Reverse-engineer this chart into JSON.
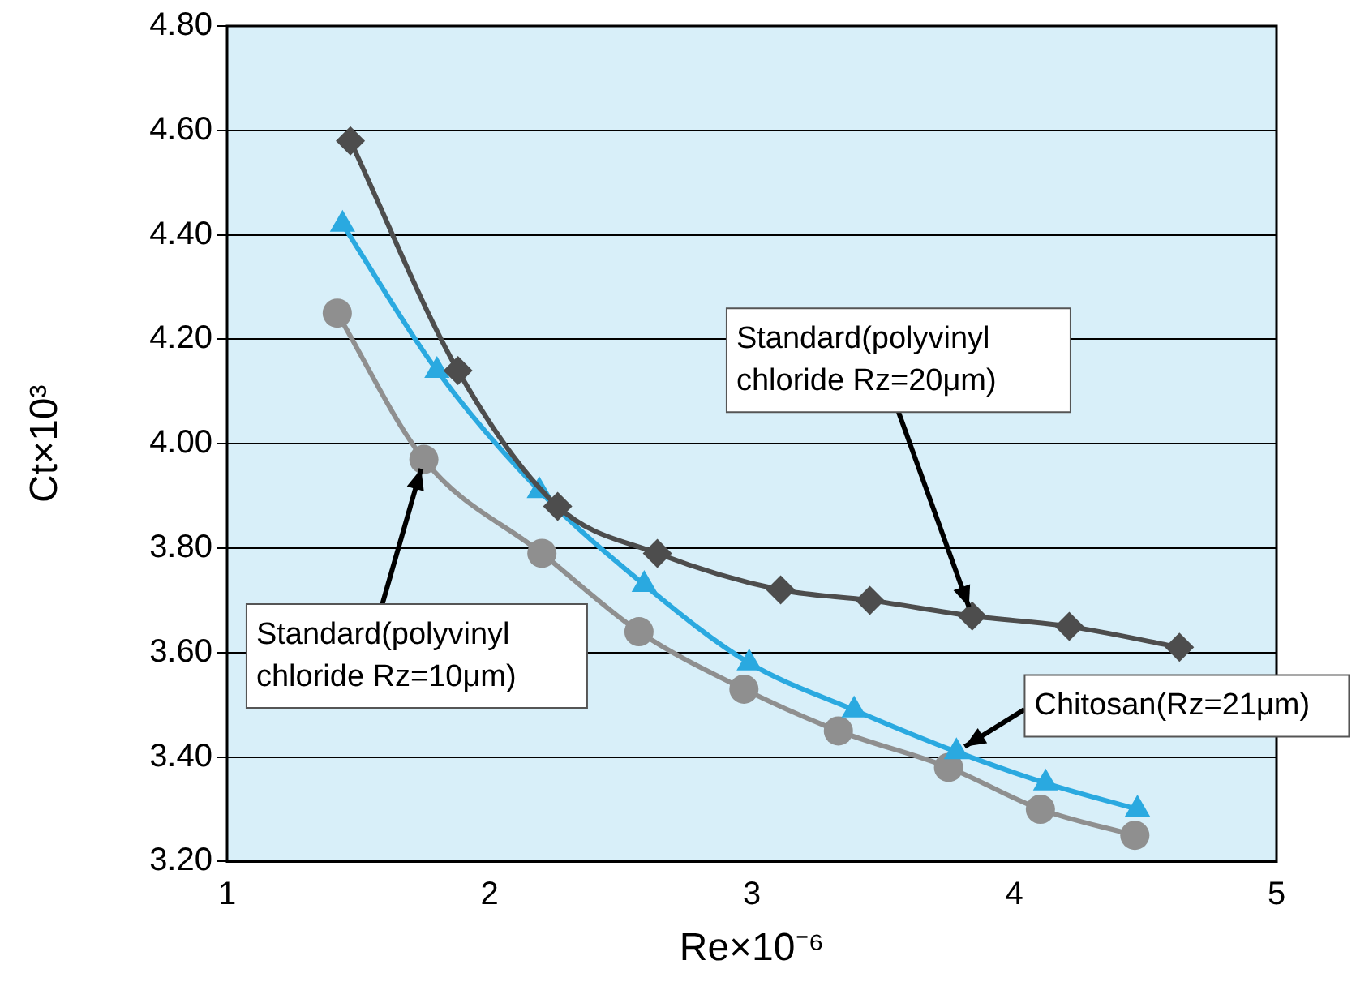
{
  "chart_data": {
    "type": "line",
    "xlabel": "Re×10⁻⁶",
    "ylabel": "Ct×10³",
    "xlim": [
      1,
      5
    ],
    "xticks": [
      1,
      2,
      3,
      4,
      5
    ],
    "ylim": [
      3.2,
      4.8
    ],
    "yticks": [
      {
        "value": 3.2,
        "label": "3.20"
      },
      {
        "value": 3.4,
        "label": "3.40"
      },
      {
        "value": 3.6,
        "label": "3.60"
      },
      {
        "value": 3.8,
        "label": "3.80"
      },
      {
        "value": 4.0,
        "label": "4.00"
      },
      {
        "value": 4.2,
        "label": "4.20"
      },
      {
        "value": 4.4,
        "label": "4.40"
      },
      {
        "value": 4.6,
        "label": "4.60"
      },
      {
        "value": 4.8,
        "label": "4.80"
      }
    ],
    "grid": "y",
    "legend": false,
    "series": [
      {
        "color": "#4d4d4d",
        "marker": "diamond",
        "x": [
          1.47,
          1.88,
          2.26,
          2.64,
          3.11,
          3.45,
          3.84,
          4.21,
          4.63
        ],
        "values": [
          4.58,
          4.14,
          3.88,
          3.79,
          3.72,
          3.7,
          3.67,
          3.65,
          3.61
        ]
      },
      {
        "color": "#2aa9e0",
        "marker": "triangle",
        "x": [
          1.44,
          1.8,
          2.19,
          2.59,
          2.99,
          3.39,
          3.78,
          4.12,
          4.47
        ],
        "values": [
          4.42,
          4.14,
          3.91,
          3.73,
          3.58,
          3.49,
          3.41,
          3.35,
          3.3
        ]
      },
      {
        "color": "#8f8f8f",
        "marker": "circle",
        "x": [
          1.42,
          1.75,
          2.2,
          2.57,
          2.97,
          3.33,
          3.75,
          4.1,
          4.46
        ],
        "values": [
          4.25,
          3.97,
          3.79,
          3.64,
          3.53,
          3.45,
          3.38,
          3.3,
          3.25
        ]
      }
    ],
    "annotations": [
      {
        "text": "Standard(polyvinyl\nchloride Rz=20μm)",
        "x": 3.84,
        "y": 3.67
      },
      {
        "text": "Standard(polyvinyl\nchloride Rz=10μm)",
        "x": 1.75,
        "y": 3.97
      },
      {
        "text": "Chitosan(Rz=21μm)",
        "x": 3.78,
        "y": 3.41
      }
    ]
  }
}
